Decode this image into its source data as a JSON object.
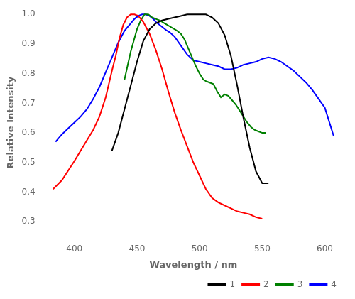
{
  "chart_data": {
    "type": "line",
    "xlabel": "Wavelength / nm",
    "ylabel": "Relative Intensity",
    "xlim": [
      375,
      615
    ],
    "ylim": [
      0.25,
      1.02
    ],
    "xticks": [
      400,
      450,
      500,
      550,
      600
    ],
    "yticks": [
      0.3,
      0.4,
      0.5,
      0.6,
      0.7,
      0.8,
      0.9,
      {
        "value": 1.0,
        "label": "1.0"
      }
    ],
    "grid": false,
    "legend": "lower right",
    "series": [
      {
        "name": "1",
        "color": "black",
        "x": [
          430,
          435,
          440,
          445,
          450,
          455,
          460,
          465,
          470,
          475,
          480,
          485,
          490,
          495,
          500,
          505,
          510,
          515,
          520,
          525,
          530,
          535,
          540,
          545,
          550,
          555
        ],
        "values": [
          0.54,
          0.6,
          0.68,
          0.76,
          0.84,
          0.91,
          0.95,
          0.97,
          0.98,
          0.985,
          0.99,
          0.995,
          1.0,
          1.0,
          1.0,
          1.0,
          0.99,
          0.97,
          0.93,
          0.86,
          0.76,
          0.65,
          0.55,
          0.47,
          0.43,
          0.43
        ]
      },
      {
        "name": "2",
        "color": "red",
        "x": [
          383,
          390,
          400,
          410,
          415,
          420,
          425,
          430,
          433,
          436,
          439,
          442,
          445,
          448,
          451,
          455,
          460,
          465,
          470,
          475,
          480,
          485,
          490,
          495,
          500,
          505,
          510,
          515,
          520,
          525,
          530,
          535,
          540,
          545,
          550
        ],
        "values": [
          0.41,
          0.44,
          0.505,
          0.575,
          0.61,
          0.655,
          0.72,
          0.81,
          0.86,
          0.92,
          0.965,
          0.99,
          1.0,
          1.0,
          0.995,
          0.975,
          0.935,
          0.88,
          0.815,
          0.74,
          0.67,
          0.61,
          0.555,
          0.5,
          0.455,
          0.41,
          0.38,
          0.365,
          0.355,
          0.345,
          0.335,
          0.33,
          0.325,
          0.315,
          0.31
        ]
      },
      {
        "name": "3",
        "color": "green",
        "x": [
          440,
          445,
          450,
          453,
          456,
          459,
          462,
          465,
          468,
          470,
          472,
          474,
          476,
          478,
          480,
          482,
          485,
          488,
          491,
          494,
          497,
          500,
          503,
          505,
          508,
          511,
          514,
          517,
          520,
          523,
          526,
          529,
          532,
          535,
          538,
          541,
          544,
          547,
          550,
          553
        ],
        "values": [
          0.78,
          0.875,
          0.95,
          0.98,
          1.0,
          1.0,
          0.99,
          0.985,
          0.98,
          0.975,
          0.97,
          0.965,
          0.96,
          0.955,
          0.95,
          0.945,
          0.935,
          0.915,
          0.885,
          0.855,
          0.825,
          0.8,
          0.78,
          0.775,
          0.77,
          0.765,
          0.74,
          0.72,
          0.73,
          0.725,
          0.71,
          0.695,
          0.675,
          0.655,
          0.635,
          0.62,
          0.61,
          0.605,
          0.6,
          0.6
        ]
      },
      {
        "name": "4",
        "color": "blue",
        "x": [
          385,
          390,
          395,
          400,
          405,
          410,
          415,
          420,
          425,
          430,
          435,
          440,
          445,
          448,
          451,
          454,
          457,
          460,
          463,
          465,
          468,
          470,
          473,
          476,
          480,
          485,
          490,
          495,
          500,
          505,
          510,
          515,
          520,
          525,
          530,
          535,
          540,
          545,
          550,
          555,
          560,
          565,
          570,
          575,
          580,
          585,
          590,
          595,
          600,
          607
        ],
        "values": [
          0.57,
          0.595,
          0.615,
          0.635,
          0.655,
          0.68,
          0.715,
          0.755,
          0.805,
          0.855,
          0.905,
          0.945,
          0.97,
          0.985,
          0.995,
          1.0,
          1.0,
          0.995,
          0.985,
          0.975,
          0.965,
          0.958,
          0.948,
          0.94,
          0.925,
          0.895,
          0.865,
          0.845,
          0.84,
          0.835,
          0.83,
          0.825,
          0.815,
          0.815,
          0.82,
          0.83,
          0.835,
          0.84,
          0.85,
          0.855,
          0.85,
          0.84,
          0.825,
          0.81,
          0.79,
          0.77,
          0.745,
          0.715,
          0.685,
          0.59
        ]
      }
    ]
  }
}
